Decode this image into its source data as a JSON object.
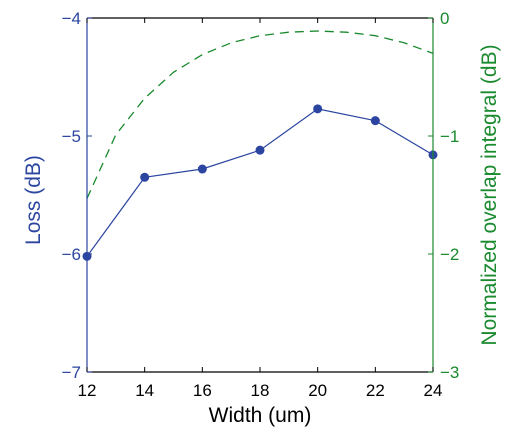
{
  "chart_data": {
    "type": "line",
    "xlabel": "Width (um)",
    "ylabel_left": "Loss (dB)",
    "ylabel_right": "Normalized overlap integral (dB)",
    "x_ticks": [
      "12",
      "14",
      "16",
      "18",
      "20",
      "22",
      "24"
    ],
    "y_left_ticks": [
      "−4",
      "−5",
      "−6",
      "−7"
    ],
    "y_right_ticks": [
      "0",
      "−1",
      "−2",
      "−3"
    ],
    "xlim": [
      12,
      24
    ],
    "ylim_left": [
      -7,
      -4
    ],
    "ylim_right": [
      -3,
      0
    ],
    "grid": false,
    "colors": {
      "left": "#2b45a0",
      "right": "#1a8a2e",
      "frame": "#000000"
    },
    "series": [
      {
        "axis": "left",
        "style": "solid-markers",
        "x": [
          12,
          14,
          16,
          18,
          20,
          22,
          24
        ],
        "y": [
          -6.02,
          -5.35,
          -5.28,
          -5.12,
          -4.77,
          -4.87,
          -5.16
        ]
      },
      {
        "axis": "right",
        "style": "dashed",
        "x": [
          12,
          13,
          14,
          15,
          16,
          17,
          18,
          19,
          20,
          21,
          22,
          23,
          24
        ],
        "y": [
          -1.53,
          -0.99,
          -0.68,
          -0.46,
          -0.31,
          -0.21,
          -0.15,
          -0.12,
          -0.11,
          -0.12,
          -0.15,
          -0.21,
          -0.3
        ]
      }
    ]
  }
}
